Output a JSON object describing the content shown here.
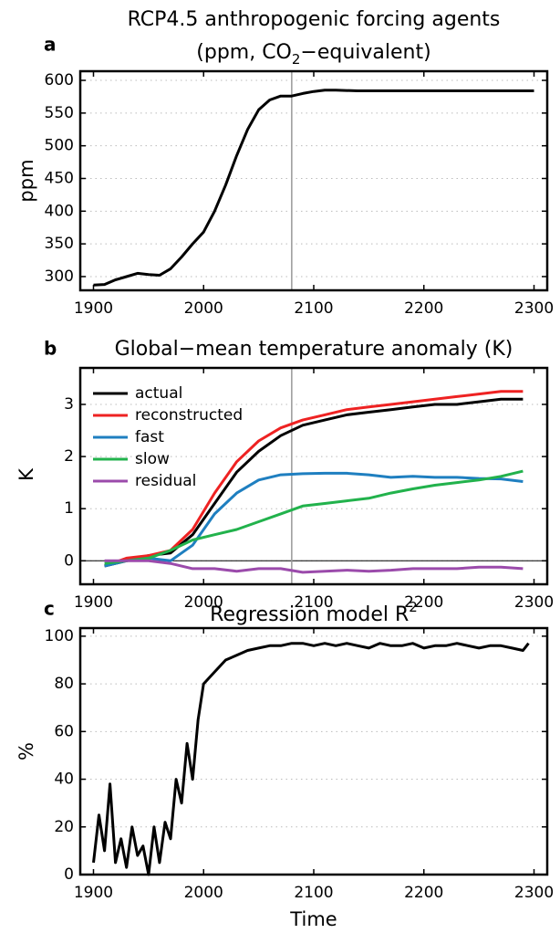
{
  "chart_data": [
    {
      "type": "line",
      "panel_label": "a",
      "title": [
        "RCP4.5 anthropogenic forcing agents",
        "(ppm, CO",
        "2",
        "−equivalent)"
      ],
      "ylabel": "ppm",
      "x": [
        1900,
        1910,
        1920,
        1930,
        1940,
        1950,
        1960,
        1970,
        1980,
        1990,
        2000,
        2010,
        2020,
        2030,
        2040,
        2050,
        2060,
        2070,
        2080,
        2090,
        2100,
        2110,
        2120,
        2140,
        2160,
        2180,
        2200,
        2220,
        2240,
        2260,
        2280,
        2300
      ],
      "values": [
        287,
        288,
        295,
        300,
        305,
        303,
        302,
        312,
        330,
        350,
        368,
        400,
        440,
        485,
        525,
        555,
        570,
        576,
        576,
        580,
        583,
        585,
        585,
        584,
        584,
        584,
        584,
        584,
        584,
        584,
        584,
        584
      ],
      "color": "#000000",
      "xlim": [
        1888,
        2312
      ],
      "ylim": [
        279,
        614
      ],
      "xticks": [
        1900,
        2000,
        2100,
        2200,
        2300
      ],
      "yticks": [
        300,
        350,
        400,
        450,
        500,
        550,
        600
      ],
      "vline": 2080,
      "grid": true
    },
    {
      "type": "line",
      "panel_label": "b",
      "title": [
        "Global−mean temperature anomaly (K)"
      ],
      "ylabel": "K",
      "x": [
        1910,
        1930,
        1950,
        1970,
        1990,
        2010,
        2030,
        2050,
        2070,
        2090,
        2110,
        2130,
        2150,
        2170,
        2190,
        2210,
        2230,
        2250,
        2270,
        2290
      ],
      "series": [
        {
          "name": "actual",
          "color": "#000000",
          "values": [
            -0.1,
            0.0,
            0.1,
            0.15,
            0.5,
            1.1,
            1.7,
            2.1,
            2.4,
            2.6,
            2.7,
            2.8,
            2.85,
            2.9,
            2.95,
            3.0,
            3.0,
            3.05,
            3.1,
            3.1
          ]
        },
        {
          "name": "reconstructed",
          "color": "#ee2222",
          "values": [
            -0.1,
            0.05,
            0.1,
            0.2,
            0.6,
            1.3,
            1.9,
            2.3,
            2.55,
            2.7,
            2.8,
            2.9,
            2.95,
            3.0,
            3.05,
            3.1,
            3.15,
            3.2,
            3.25,
            3.25
          ]
        },
        {
          "name": "fast",
          "color": "#1f7fc0",
          "values": [
            -0.1,
            0.0,
            0.05,
            0.0,
            0.3,
            0.9,
            1.3,
            1.55,
            1.65,
            1.67,
            1.68,
            1.68,
            1.65,
            1.6,
            1.62,
            1.6,
            1.6,
            1.58,
            1.57,
            1.52
          ]
        },
        {
          "name": "slow",
          "color": "#22b24c",
          "values": [
            -0.05,
            0.0,
            0.05,
            0.2,
            0.4,
            0.5,
            0.6,
            0.75,
            0.9,
            1.05,
            1.1,
            1.15,
            1.2,
            1.3,
            1.38,
            1.45,
            1.5,
            1.55,
            1.62,
            1.72
          ]
        },
        {
          "name": "residual",
          "color": "#9b4bab",
          "values": [
            0.0,
            0.0,
            0.0,
            -0.05,
            -0.15,
            -0.15,
            -0.2,
            -0.15,
            -0.15,
            -0.22,
            -0.2,
            -0.18,
            -0.2,
            -0.18,
            -0.15,
            -0.15,
            -0.15,
            -0.12,
            -0.12,
            -0.15
          ]
        }
      ],
      "xlim": [
        1888,
        2312
      ],
      "ylim": [
        -0.45,
        3.7
      ],
      "xticks": [
        1900,
        2000,
        2100,
        2200,
        2300
      ],
      "yticks": [
        0,
        1,
        2,
        3
      ],
      "vline": 2080,
      "hline": 0,
      "grid": true,
      "legend": "upper left"
    },
    {
      "type": "line",
      "panel_label": "c",
      "title": [
        "Regression model R",
        "2"
      ],
      "ylabel": "%",
      "xlabel": "Time",
      "x": [
        1900,
        1905,
        1910,
        1915,
        1920,
        1925,
        1930,
        1935,
        1940,
        1945,
        1950,
        1955,
        1960,
        1965,
        1970,
        1975,
        1980,
        1985,
        1990,
        1995,
        2000,
        2010,
        2020,
        2030,
        2040,
        2050,
        2060,
        2070,
        2080,
        2090,
        2100,
        2110,
        2120,
        2130,
        2140,
        2150,
        2160,
        2170,
        2180,
        2190,
        2200,
        2210,
        2220,
        2230,
        2240,
        2250,
        2260,
        2270,
        2280,
        2290,
        2295
      ],
      "values": [
        5,
        25,
        10,
        38,
        5,
        15,
        3,
        20,
        8,
        12,
        0,
        20,
        5,
        22,
        15,
        40,
        30,
        55,
        40,
        65,
        80,
        85,
        90,
        92,
        94,
        95,
        96,
        96,
        97,
        97,
        96,
        97,
        96,
        97,
        96,
        95,
        97,
        96,
        96,
        97,
        95,
        96,
        96,
        97,
        96,
        95,
        96,
        96,
        95,
        94,
        97
      ],
      "color": "#000000",
      "xlim": [
        1888,
        2312
      ],
      "ylim": [
        0,
        103.4
      ],
      "xticks": [
        1900,
        2000,
        2100,
        2200,
        2300
      ],
      "yticks": [
        0,
        20,
        40,
        60,
        80,
        100
      ],
      "grid": true
    }
  ]
}
